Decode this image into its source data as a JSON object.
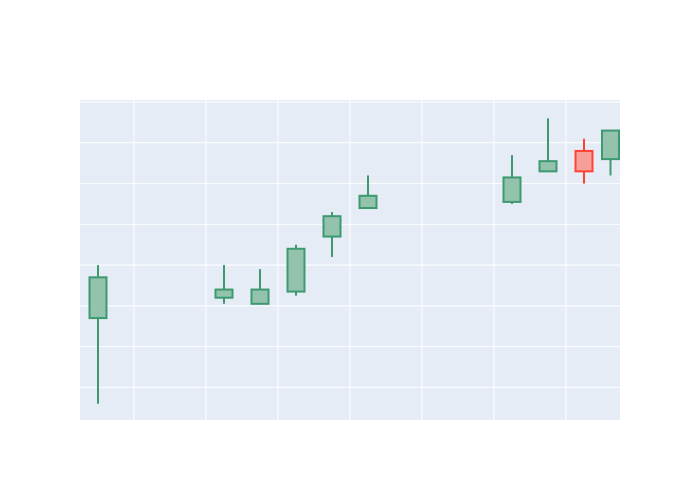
{
  "chart_data": {
    "type": "candlestick",
    "title": "",
    "xlabel": "",
    "ylabel": "",
    "grid": true,
    "xlim": [
      -0.5,
      14.5
    ],
    "ylim": [
      0.2,
      8.05
    ],
    "x_gridlines": [
      1,
      3,
      5,
      7,
      9,
      11,
      13
    ],
    "y_gridlines": [
      1,
      2,
      3,
      4,
      5,
      6,
      7,
      8
    ],
    "candles": [
      {
        "x": 0,
        "open": 2.7,
        "close": 3.7,
        "high": 4.0,
        "low": 0.6
      },
      {
        "x": 3.5,
        "open": 3.2,
        "close": 3.4,
        "high": 4.0,
        "low": 3.05
      },
      {
        "x": 4.5,
        "open": 3.05,
        "close": 3.4,
        "high": 3.9,
        "low": 3.05
      },
      {
        "x": 5.5,
        "open": 3.35,
        "close": 4.4,
        "high": 4.5,
        "low": 3.25
      },
      {
        "x": 6.5,
        "open": 4.7,
        "close": 5.2,
        "high": 5.3,
        "low": 4.2
      },
      {
        "x": 7.5,
        "open": 5.4,
        "close": 5.7,
        "high": 6.2,
        "low": 5.4
      },
      {
        "x": 11.5,
        "open": 5.55,
        "close": 6.15,
        "high": 6.7,
        "low": 5.5
      },
      {
        "x": 12.5,
        "open": 6.3,
        "close": 6.55,
        "high": 7.6,
        "low": 6.3
      },
      {
        "x": 13.5,
        "open": 6.8,
        "close": 6.3,
        "high": 7.1,
        "low": 6.0
      },
      {
        "x": 14.5,
        "open": 6.6,
        "close": 7.3,
        "high": 7.3,
        "low": 6.2
      }
    ],
    "colors": {
      "background": "#e5ecf6",
      "increasing_line": "#3d9970",
      "increasing_fill": "#93c2ad",
      "decreasing_line": "#ff4136",
      "decreasing_fill": "#f7a09a"
    }
  }
}
